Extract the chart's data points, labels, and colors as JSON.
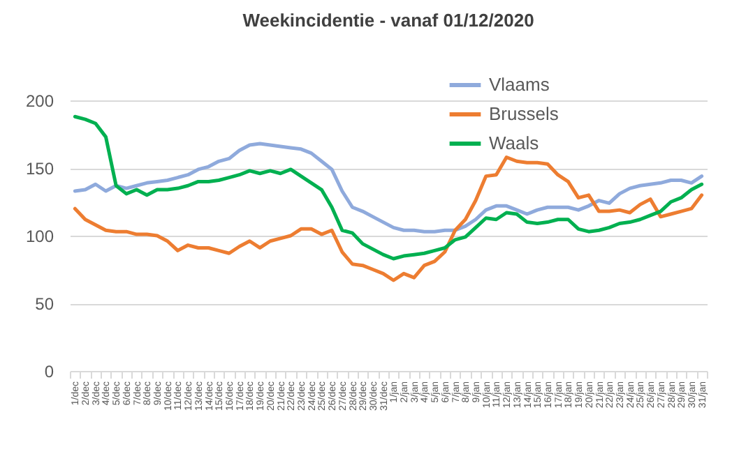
{
  "chart_data": {
    "type": "line",
    "title": "Weekincidentie  - vanaf 01/12/2020",
    "categories": [
      "1/dec",
      "2/dec",
      "3/dec",
      "4/dec",
      "5/dec",
      "6/dec",
      "7/dec",
      "8/dec",
      "9/dec",
      "10/dec",
      "11/dec",
      "12/dec",
      "13/dec",
      "14/dec",
      "15/dec",
      "16/dec",
      "17/dec",
      "18/dec",
      "19/dec",
      "20/dec",
      "21/dec",
      "22/dec",
      "23/dec",
      "24/dec",
      "25/dec",
      "26/dec",
      "27/dec",
      "28/dec",
      "29/dec",
      "30/dec",
      "31/dec",
      "1/jan",
      "2/jan",
      "3/jan",
      "4/jan",
      "5/jan",
      "6/jan",
      "7/jan",
      "8/jan",
      "9/jan",
      "10/jan",
      "11/jan",
      "12/jan",
      "13/jan",
      "14/jan",
      "15/jan",
      "16/jan",
      "17/jan",
      "18/jan",
      "19/jan",
      "20/jan",
      "21/jan",
      "22/jan",
      "23/jan",
      "24/jan",
      "25/jan",
      "26/jan",
      "27/jan",
      "28/jan",
      "29/jan",
      "30/jan",
      "31/jan"
    ],
    "series": [
      {
        "name": "Vlaams",
        "color": "#8faadc",
        "values": [
          133,
          134,
          138,
          133,
          137,
          135,
          137,
          139,
          140,
          141,
          143,
          145,
          149,
          151,
          155,
          157,
          163,
          167,
          168,
          167,
          166,
          165,
          164,
          161,
          155,
          149,
          133,
          121,
          118,
          114,
          110,
          106,
          104,
          104,
          103,
          103,
          104,
          104,
          107,
          112,
          119,
          122,
          122,
          119,
          116,
          119,
          121,
          121,
          121,
          119,
          122,
          126,
          124,
          131,
          135,
          137,
          138,
          139,
          141,
          141,
          139,
          144
        ]
      },
      {
        "name": "Brussels",
        "color": "#ed7d31",
        "values": [
          120,
          112,
          108,
          104,
          103,
          103,
          101,
          101,
          100,
          96,
          89,
          93,
          91,
          91,
          89,
          87,
          92,
          96,
          91,
          96,
          98,
          100,
          105,
          105,
          101,
          104,
          88,
          79,
          78,
          75,
          72,
          67,
          72,
          69,
          78,
          81,
          88,
          104,
          112,
          126,
          144,
          145,
          158,
          155,
          154,
          154,
          153,
          145,
          140,
          128,
          130,
          118,
          118,
          119,
          117,
          123,
          127,
          114,
          116,
          118,
          120,
          130
        ]
      },
      {
        "name": "Waals",
        "color": "#00b050",
        "values": [
          188,
          186,
          183,
          173,
          137,
          131,
          134,
          130,
          134,
          134,
          135,
          137,
          140,
          140,
          141,
          143,
          145,
          148,
          146,
          148,
          146,
          149,
          144,
          139,
          134,
          121,
          104,
          102,
          94,
          90,
          86,
          83,
          85,
          86,
          87,
          89,
          91,
          97,
          99,
          106,
          113,
          112,
          117,
          116,
          110,
          109,
          110,
          112,
          112,
          105,
          103,
          104,
          106,
          109,
          110,
          112,
          115,
          118,
          125,
          128,
          134,
          138
        ]
      }
    ],
    "ylim": [
      0,
      200
    ],
    "yticks": [
      0,
      50,
      100,
      150,
      200
    ],
    "grid": "y",
    "legend": "top right"
  }
}
